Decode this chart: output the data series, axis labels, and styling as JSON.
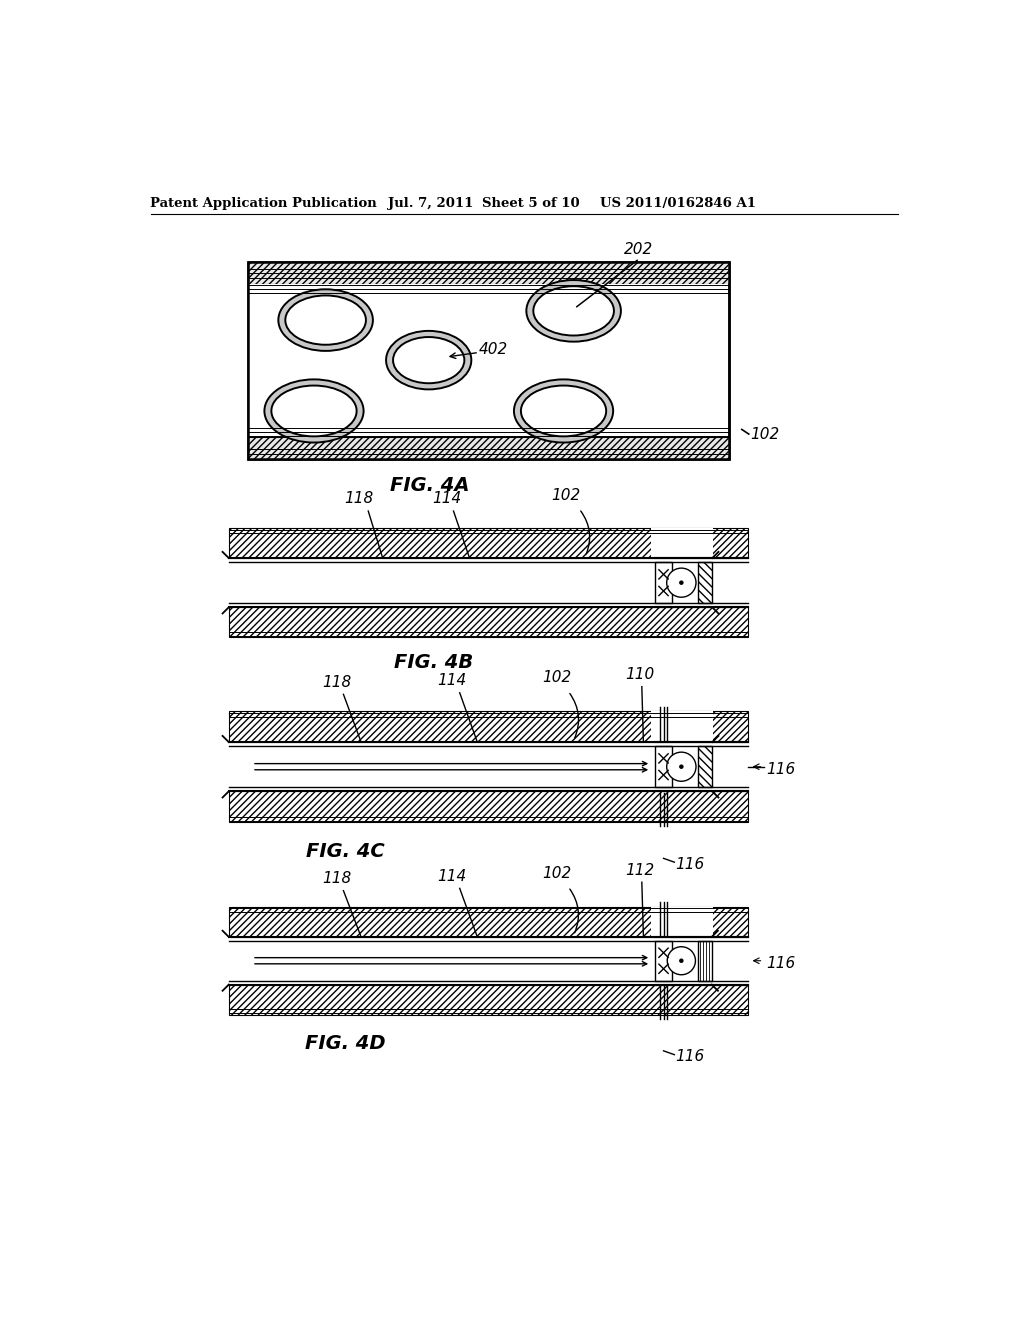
{
  "bg_color": "#ffffff",
  "header_text": "Patent Application Publication",
  "header_date": "Jul. 7, 2011",
  "header_sheet": "Sheet 5 of 10",
  "header_patent": "US 2011/0162846 A1",
  "fig4a_label": "FIG. 4A",
  "fig4b_label": "FIG. 4B",
  "fig4c_label": "FIG. 4C",
  "fig4d_label": "FIG. 4D",
  "label_202": "202",
  "label_402": "402",
  "label_102_4a": "102",
  "label_118_4b": "118",
  "label_114_4b": "114",
  "label_102_4b": "102",
  "label_118_4c": "118",
  "label_114_4c": "114",
  "label_102_4c": "102",
  "label_110_4c": "110",
  "label_116_4c_right": "116",
  "label_116_4c_bot": "116",
  "label_118_4d": "118",
  "label_114_4d": "114",
  "label_102_4d": "102",
  "label_112_4d": "112",
  "label_116_4d_right": "116",
  "label_116_4d_bot": "116",
  "text_color": "#000000"
}
